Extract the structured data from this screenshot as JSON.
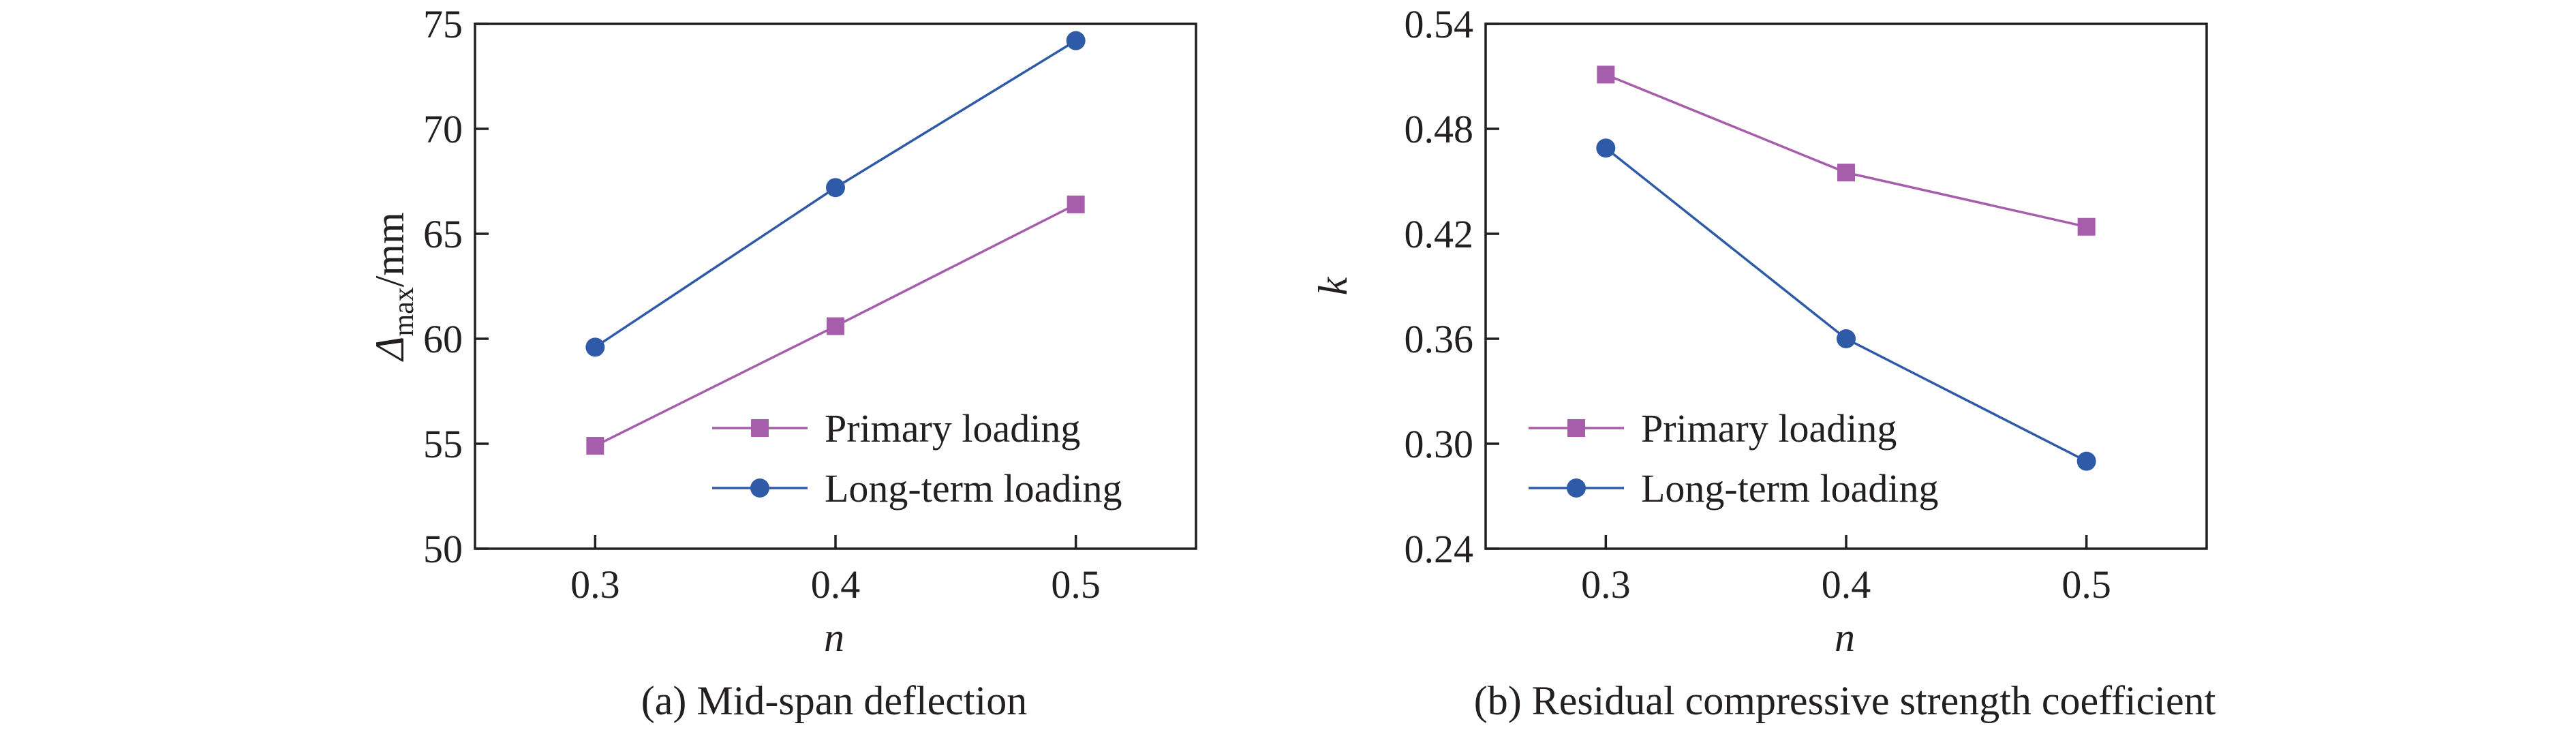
{
  "chart_data": [
    {
      "type": "line",
      "caption": "(a) Mid-span deflection",
      "xlabel": "n",
      "ylabel_main": "Δ",
      "ylabel_sub": "max",
      "ylabel_unit": "/mm",
      "x": [
        0.3,
        0.4,
        0.5
      ],
      "x_ticks": [
        "0.3",
        "0.4",
        "0.5"
      ],
      "xlim": [
        0.25,
        0.55
      ],
      "ylim": [
        50,
        75
      ],
      "y_ticks": [
        "50",
        "55",
        "60",
        "65",
        "70",
        "75"
      ],
      "y_tick_values": [
        50,
        55,
        60,
        65,
        70,
        75
      ],
      "grid": false,
      "legend_position": "lower-right",
      "series": [
        {
          "name": "Primary loading",
          "marker": "square",
          "line_color": "#a65dab",
          "marker_color": "#a65dab",
          "values": [
            54.9,
            60.6,
            66.4
          ]
        },
        {
          "name": "Long-term loading",
          "marker": "circle",
          "line_color": "#2e5aa8",
          "marker_color": "#2e5aa8",
          "values": [
            59.6,
            67.2,
            74.2
          ]
        }
      ]
    },
    {
      "type": "line",
      "caption": "(b) Residual compressive strength coefficient",
      "xlabel": "n",
      "ylabel_main": "k",
      "x": [
        0.3,
        0.4,
        0.5
      ],
      "x_ticks": [
        "0.3",
        "0.4",
        "0.5"
      ],
      "xlim": [
        0.25,
        0.55
      ],
      "ylim": [
        0.24,
        0.54
      ],
      "y_ticks": [
        "0.24",
        "0.30",
        "0.36",
        "0.42",
        "0.48",
        "0.54"
      ],
      "y_tick_values": [
        0.24,
        0.3,
        0.36,
        0.42,
        0.48,
        0.54
      ],
      "grid": false,
      "legend_position": "lower-left",
      "series": [
        {
          "name": "Primary loading",
          "marker": "square",
          "line_color": "#a65dab",
          "marker_color": "#a65dab",
          "values": [
            0.511,
            0.455,
            0.424
          ]
        },
        {
          "name": "Long-term loading",
          "marker": "circle",
          "line_color": "#2e5aa8",
          "marker_color": "#2e5aa8",
          "values": [
            0.469,
            0.36,
            0.29
          ]
        }
      ]
    }
  ]
}
